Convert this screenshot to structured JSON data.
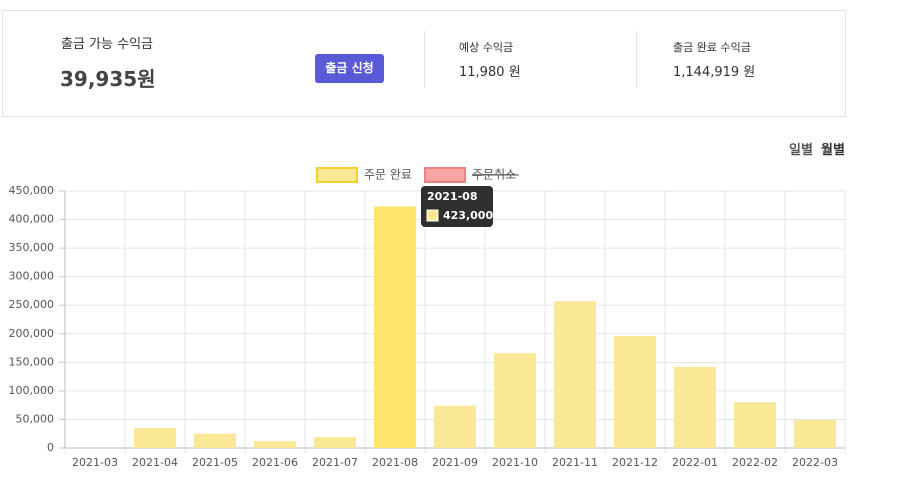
{
  "summary": {
    "available_label": "출금 가능 수익금",
    "available_value": "39,935원",
    "button": "출금 신청",
    "expected_label": "예상 수익금",
    "expected_value": "11,980 원",
    "completed_label": "출금 완료 수익금",
    "completed_value": "1,144,919 원"
  },
  "toggle": [
    "일별",
    "월별"
  ],
  "chart_data": {
    "type": "bar",
    "categories": [
      "2021-03",
      "2021-04",
      "2021-05",
      "2021-06",
      "2021-07",
      "2021-08",
      "2021-09",
      "2021-10",
      "2021-11",
      "2021-12",
      "2022-01",
      "2022-02",
      "2022-03"
    ],
    "series": [
      {
        "name": "주문 완료",
        "color": "#fbe896",
        "values": [
          0,
          35000,
          25000,
          12000,
          19000,
          423000,
          74000,
          166000,
          257000,
          196000,
          142000,
          80000,
          49000
        ]
      }
    ],
    "hidden_series": [
      {
        "name": "주문취소",
        "color": "#f8a5a5"
      }
    ],
    "ylim": [
      0,
      450000
    ],
    "yticks": [
      0,
      {
        "value": 50000,
        "label": "50,000"
      },
      {
        "value": 100000,
        "label": "100,000"
      },
      {
        "value": 150000,
        "label": "150,000"
      },
      {
        "value": 200000,
        "label": "200,000"
      },
      {
        "value": 250000,
        "label": "250,000"
      },
      {
        "value": 300000,
        "label": "300,000"
      },
      {
        "value": 350000,
        "label": "350,000"
      },
      {
        "value": 400000,
        "label": "400,000"
      },
      {
        "value": 450000,
        "label": "450,000"
      }
    ],
    "grid": true,
    "tooltip": {
      "title": "2021-08",
      "label": "423,000"
    }
  }
}
